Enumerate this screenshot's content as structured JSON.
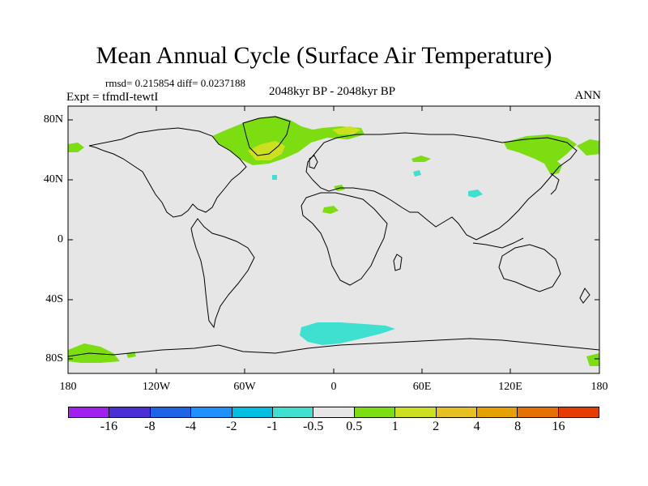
{
  "header": {
    "title": "Mean Annual Cycle (Surface Air Temperature)",
    "stats": "rmsd= 0.215854 diff= 0.0237188",
    "experiment": "Expt = tfmdI-tewtI",
    "period": "2048kyr BP - 2048kyr BP",
    "season": "ANN"
  },
  "axes": {
    "lat_labels": [
      "80N",
      "40N",
      "0",
      "40S",
      "80S"
    ],
    "lon_labels": [
      "180",
      "120W",
      "60W",
      "0",
      "60E",
      "120E",
      "180"
    ]
  },
  "colorbar": {
    "labels": [
      "-16",
      "-8",
      "-4",
      "-2",
      "-1",
      "-0.5",
      "0.5",
      "1",
      "2",
      "4",
      "8",
      "16"
    ],
    "colors": [
      "#a020f0",
      "#4b2ed6",
      "#1e64e6",
      "#1e90ff",
      "#00bfe0",
      "#40e0d0",
      "#e6e6e6",
      "#7cdd10",
      "#cde020",
      "#e6c020",
      "#e6a000",
      "#e67000",
      "#e63c00"
    ]
  },
  "colors": {
    "background": "#e6e6e6",
    "coast": "#000000",
    "warm_small": "#7cdd10",
    "warm_mid": "#cde020",
    "cool_small": "#40e0d0"
  }
}
